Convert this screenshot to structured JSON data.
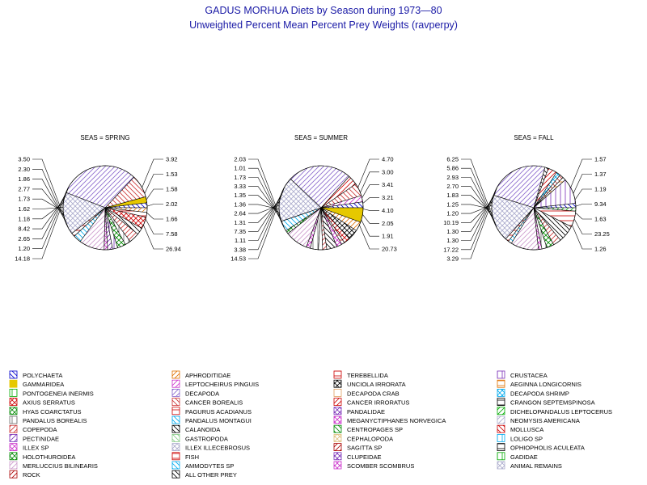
{
  "title": "GADUS MORHUA Diets by Season during 1973—80",
  "subtitle": "Unweighted Percent Mean Percent Prey  Weights (ravperpy)",
  "chart_data": {
    "type": "pie",
    "title": "GADUS MORHUA Diets by Season during 1973—80",
    "subtitle": "Unweighted Percent Mean Percent Prey  Weights (ravperpy)",
    "categories": [
      "POLYCHAETA",
      "APHRODITIDAE",
      "TEREBELLIDA",
      "CRUSTACEA",
      "GAMMARIDEA",
      "LEPTOCHEIRUS PINGUIS",
      "UNCIOLA IRRORATA",
      "AEGINNA LONGICORNIS",
      "PONTOGENEIA INERMIS",
      "DECAPODA",
      "DECAPODA CRAB",
      "DECAPODA SHRIMP",
      "AXIUS SERRATUS",
      "CANCER BOREALIS",
      "CANCER IRRORATUS",
      "CRANGON SEPTEMSPINOSA",
      "HYAS COARCTATUS",
      "PAGURUS ACADIANUS",
      "PANDALIDAE",
      "DICHELOPANDALUS LEPTOCERUS",
      "PANDALUS BOREALIS",
      "PANDALUS MONTAGUI",
      "MEGANYCTIPHANES  NORVEGICA",
      "NEOMYSIS AMERICANA",
      "COPEPODA",
      "CALANOIDA",
      "CENTROPAGES SP",
      "MOLLUSCA",
      "PECTINIDAE",
      "GASTROPODA",
      "CEPHALOPODA",
      "LOLIGO SP",
      "ILLEX SP",
      "ILLEX ILLECEBROSUS",
      "SAGITTA SP",
      "OPHIOPHOLIS ACULEATA",
      "HOLOTHUROIDEA",
      "FISH",
      "CLUPEIDAE",
      "GADIDAE",
      "MERLUCCIUS BILINEARIS",
      "AMMODYTES SP",
      "SCOMBER SCOMBRUS",
      "ANIMAL REMAINS",
      "ROCK",
      "ALL OTHER PREY"
    ],
    "legend_placement": "bottom",
    "panels": [
      {
        "title": "SEAS = SPRING",
        "slices": [
          {
            "category": "POLYCHAETA",
            "value": 1.66
          },
          {
            "category": "GAMMARIDEA",
            "value": 2.02
          },
          {
            "category": "CANCER BOREALIS",
            "value": 7.58
          },
          {
            "category": "DECAPODA",
            "value": 26.94
          },
          {
            "category": "ANIMAL REMAINS",
            "value": 14.18
          },
          {
            "category": "FISH",
            "value": 1.2
          },
          {
            "category": "AMMODYTES SP",
            "value": 2.65
          },
          {
            "category": "MERLUCCIUS BILINEARIS",
            "value": 8.42
          },
          {
            "category": "ILLEX SP",
            "value": 1.18
          },
          {
            "category": "PECTINIDAE",
            "value": 1.62
          },
          {
            "category": "CRUSTACEA",
            "value": 1.73
          },
          {
            "category": "HYAS COARCTATUS",
            "value": 2.77
          },
          {
            "category": "PANDALUS BOREALIS",
            "value": 1.86
          },
          {
            "category": "COPEPODA",
            "value": 3.5
          },
          {
            "category": "CALANOIDA",
            "value": 2.3
          },
          {
            "category": "AXIUS SERRATUS",
            "value": 3.92
          },
          {
            "category": "TEREBELLIDA",
            "value": 1.58
          },
          {
            "category": "APHRODITIDAE",
            "value": 1.53
          }
        ],
        "labels": [
          "3.50",
          "2.30",
          "1.86",
          "2.77",
          "1.73",
          "1.62",
          "1.18",
          "8.42",
          "2.65",
          "1.20",
          "14.18",
          "3.92",
          "1.53",
          "1.58",
          "2.02",
          "1.66",
          "7.58",
          "26.94"
        ]
      },
      {
        "title": "SEAS = SUMMER",
        "slices": [
          {
            "category": "POLYCHAETA",
            "value": 1.91
          },
          {
            "category": "LEPTOCHEIRUS PINGUIS",
            "value": 2.05
          },
          {
            "category": "CANCER BOREALIS",
            "value": 4.1
          },
          {
            "category": "CANCER IRRORATUS",
            "value": 3.21
          },
          {
            "category": "DECAPODA",
            "value": 20.73
          },
          {
            "category": "ANIMAL REMAINS",
            "value": 14.53
          },
          {
            "category": "AMMODYTES SP",
            "value": 3.38
          },
          {
            "category": "HYAS COARCTATUS",
            "value": 1.11
          },
          {
            "category": "MERLUCCIUS BILINEARIS",
            "value": 7.35
          },
          {
            "category": "ILLEX SP",
            "value": 1.31
          },
          {
            "category": "PANDALUS BOREALIS",
            "value": 2.64
          },
          {
            "category": "CRUSTACEA",
            "value": 1.36
          },
          {
            "category": "COPEPODA",
            "value": 1.35
          },
          {
            "category": "CALANOIDA",
            "value": 3.33
          },
          {
            "category": "MEGANYCTIPHANES  NORVEGICA",
            "value": 1.73
          },
          {
            "category": "TEREBELLIDA",
            "value": 1.01
          },
          {
            "category": "AXIUS SERRATUS",
            "value": 2.03
          },
          {
            "category": "UNCIOLA IRRORATA",
            "value": 3.41
          },
          {
            "category": "APHRODITIDAE",
            "value": 3.0
          },
          {
            "category": "GAMMARIDEA",
            "value": 4.7
          }
        ],
        "labels": [
          "2.03",
          "1.01",
          "1.73",
          "3.33",
          "1.35",
          "1.36",
          "2.64",
          "1.31",
          "7.35",
          "1.11",
          "3.38",
          "14.53",
          "4.70",
          "3.00",
          "3.41",
          "3.21",
          "4.10",
          "2.05",
          "1.91",
          "20.73"
        ]
      },
      {
        "title": "SEAS = FALL",
        "slices": [
          {
            "category": "POLYCHAETA",
            "value": 1.63
          },
          {
            "category": "CRUSTACEA",
            "value": 9.34
          },
          {
            "category": "AEGINNA LONGICORNIS",
            "value": 1.19
          },
          {
            "category": "CANCER BOREALIS",
            "value": 1.37
          },
          {
            "category": "DECAPODA SHRIMP",
            "value": 1.57
          },
          {
            "category": "CANCER IRRORATUS",
            "value": 3.29
          },
          {
            "category": "ALL OTHER PREY",
            "value": 1.26
          },
          {
            "category": "DECAPODA",
            "value": 23.25
          },
          {
            "category": "ANIMAL REMAINS",
            "value": 17.22
          },
          {
            "category": "FISH",
            "value": 1.3
          },
          {
            "category": "AMMODYTES SP",
            "value": 1.3
          },
          {
            "category": "MERLUCCIUS BILINEARIS",
            "value": 10.19
          },
          {
            "category": "ILLEX SP",
            "value": 1.25
          },
          {
            "category": "PANDALUS BOREALIS",
            "value": 1.83
          },
          {
            "category": "HYAS COARCTATUS",
            "value": 2.7
          },
          {
            "category": "COPEPODA",
            "value": 2.93
          },
          {
            "category": "CALANOIDA",
            "value": 6.25
          },
          {
            "category": "TEREBELLIDA",
            "value": 5.86
          },
          {
            "category": "DICHELOPANDALUS LEPTOCERUS",
            "value": 1.2
          }
        ],
        "labels": [
          "6.25",
          "5.86",
          "2.93",
          "2.70",
          "1.83",
          "1.25",
          "1.20",
          "10.19",
          "1.30",
          "1.30",
          "17.22",
          "3.29",
          "1.57",
          "1.37",
          "1.19",
          "9.34",
          "1.63",
          "23.25",
          "1.26"
        ]
      }
    ]
  }
}
